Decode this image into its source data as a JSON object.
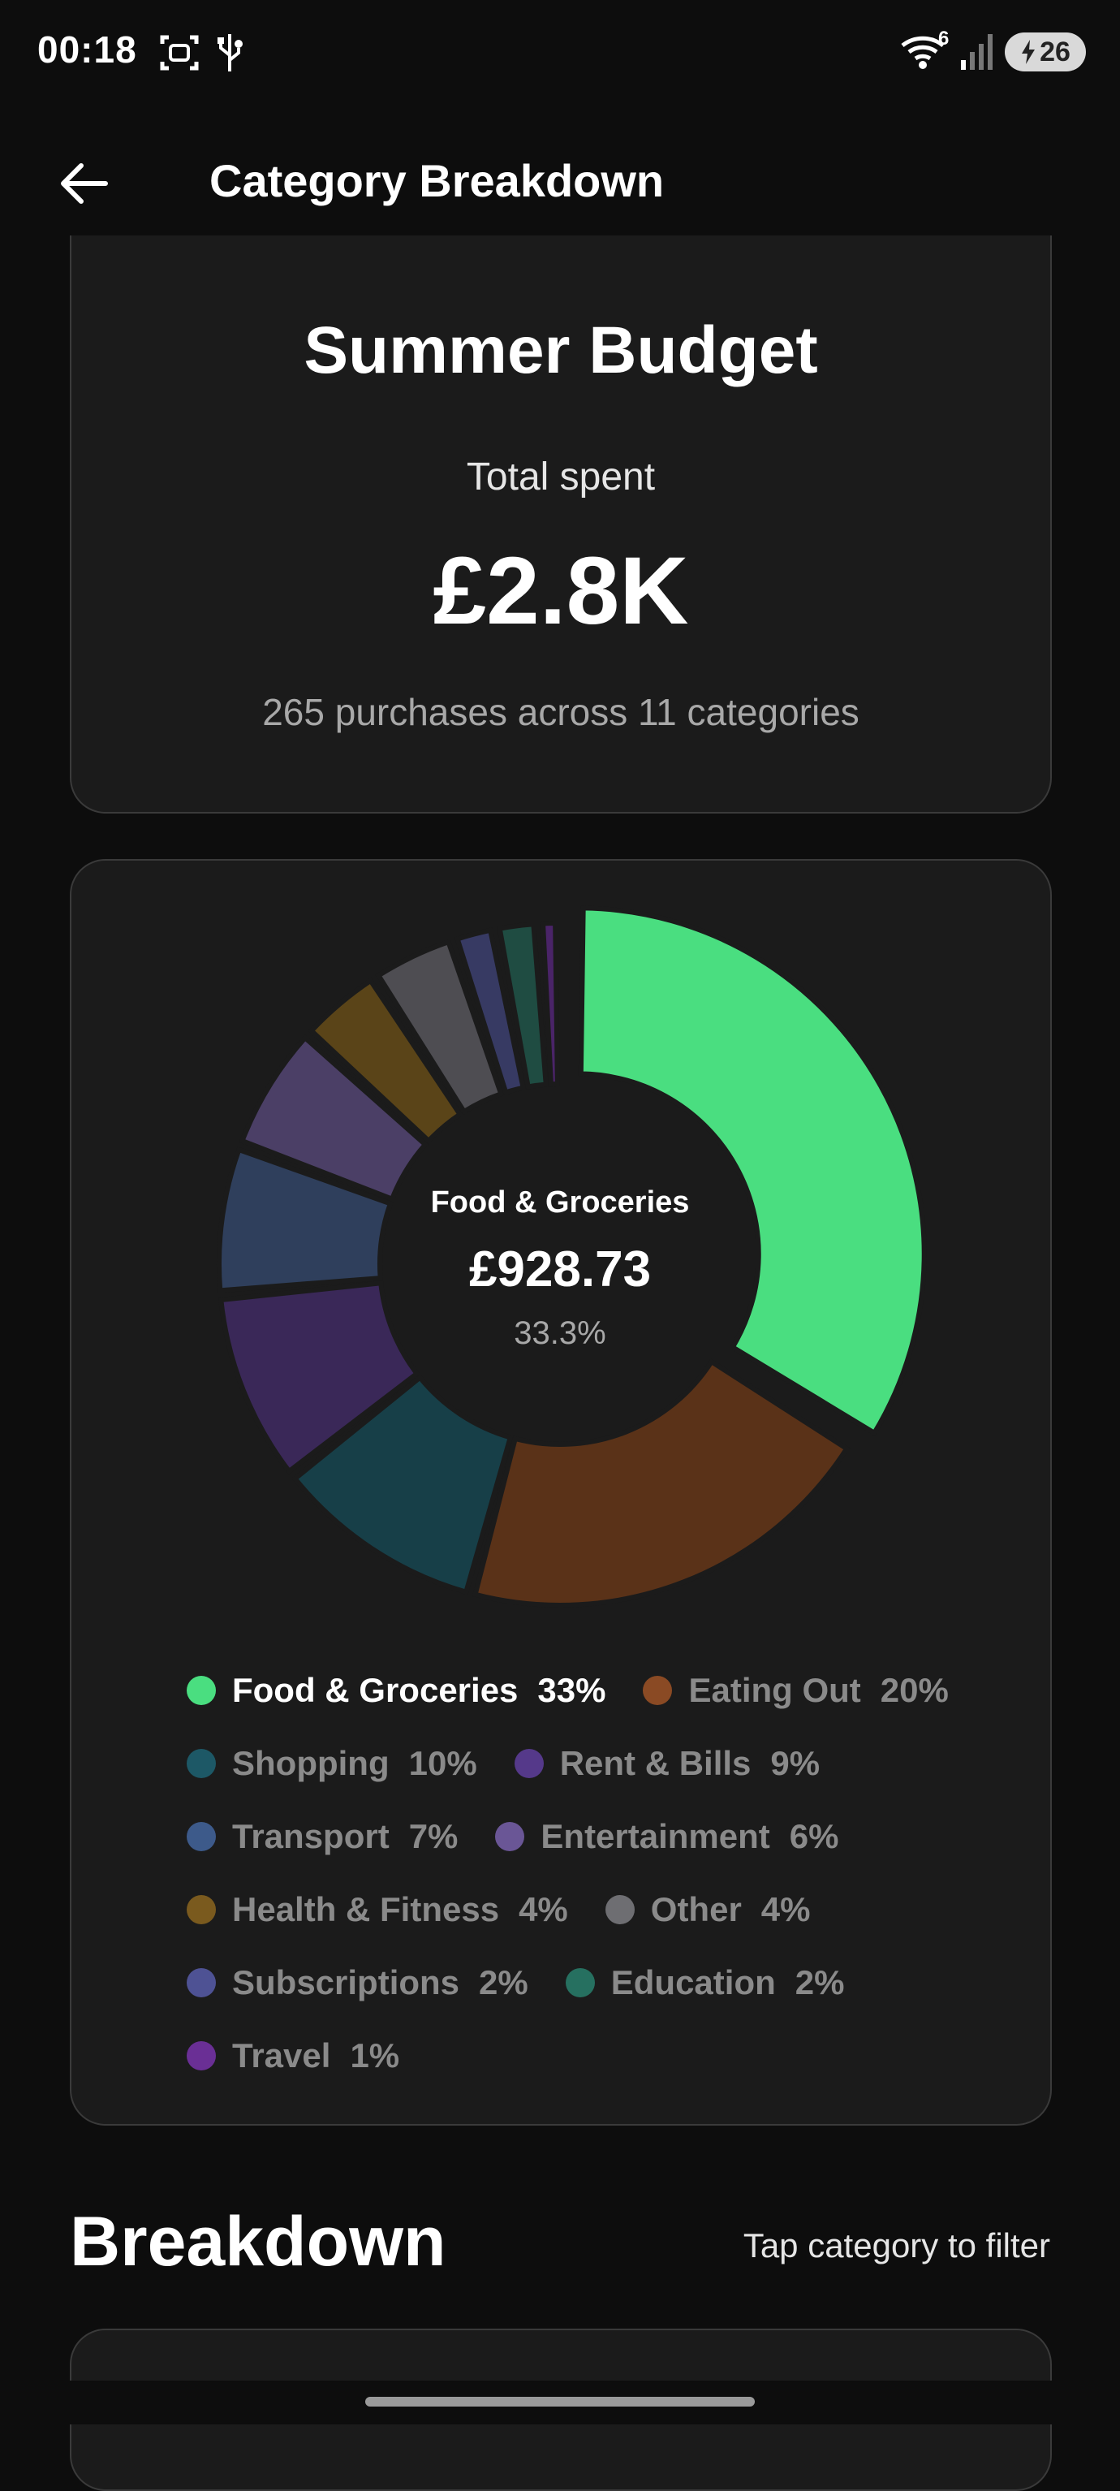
{
  "status_bar": {
    "time": "00:18",
    "wifi_badge": "6",
    "battery_level": "26",
    "icons": [
      "screenshot-icon",
      "usb-icon",
      "wifi-icon",
      "signal-icon",
      "battery-charging-icon"
    ]
  },
  "app_bar": {
    "title": "Category Breakdown",
    "back_icon": "arrow-left-icon"
  },
  "summary": {
    "title": "Summer Budget",
    "label": "Total spent",
    "amount": "£2.8K",
    "subtitle": "265 purchases across 11 categories"
  },
  "chart_data": {
    "type": "pie",
    "donut": true,
    "center": {
      "name": "Food & Groceries",
      "value": "£928.73",
      "percent": "33.3%"
    },
    "categories": [
      "Food & Groceries",
      "Eating Out",
      "Shopping",
      "Rent & Bills",
      "Transport",
      "Entertainment",
      "Health & Fitness",
      "Other",
      "Subscriptions",
      "Education",
      "Travel"
    ],
    "values": [
      33.3,
      20,
      10,
      9,
      7,
      6,
      4,
      4,
      2,
      2,
      1
    ],
    "colors": [
      "#4ade80",
      "#5a3218",
      "#173f48",
      "#3a2858",
      "#2f3f5c",
      "#4b3f66",
      "#5a4418",
      "#4e4d52",
      "#373a63",
      "#1f4c42",
      "#4a2468"
    ],
    "legend_colors": [
      "#4ade80",
      "#8a4a24",
      "#1d5866",
      "#55398a",
      "#3d5a8a",
      "#6a5696",
      "#7a5a1e",
      "#6e6e72",
      "#4e5294",
      "#267060",
      "#6a2f95"
    ],
    "legend_labels": [
      "33%",
      "20%",
      "10%",
      "9%",
      "7%",
      "6%",
      "4%",
      "4%",
      "2%",
      "2%",
      "1%"
    ],
    "legend_placement": "bottom",
    "highlighted": "Food & Groceries"
  },
  "breakdown": {
    "title": "Breakdown",
    "hint": "Tap category to filter"
  }
}
